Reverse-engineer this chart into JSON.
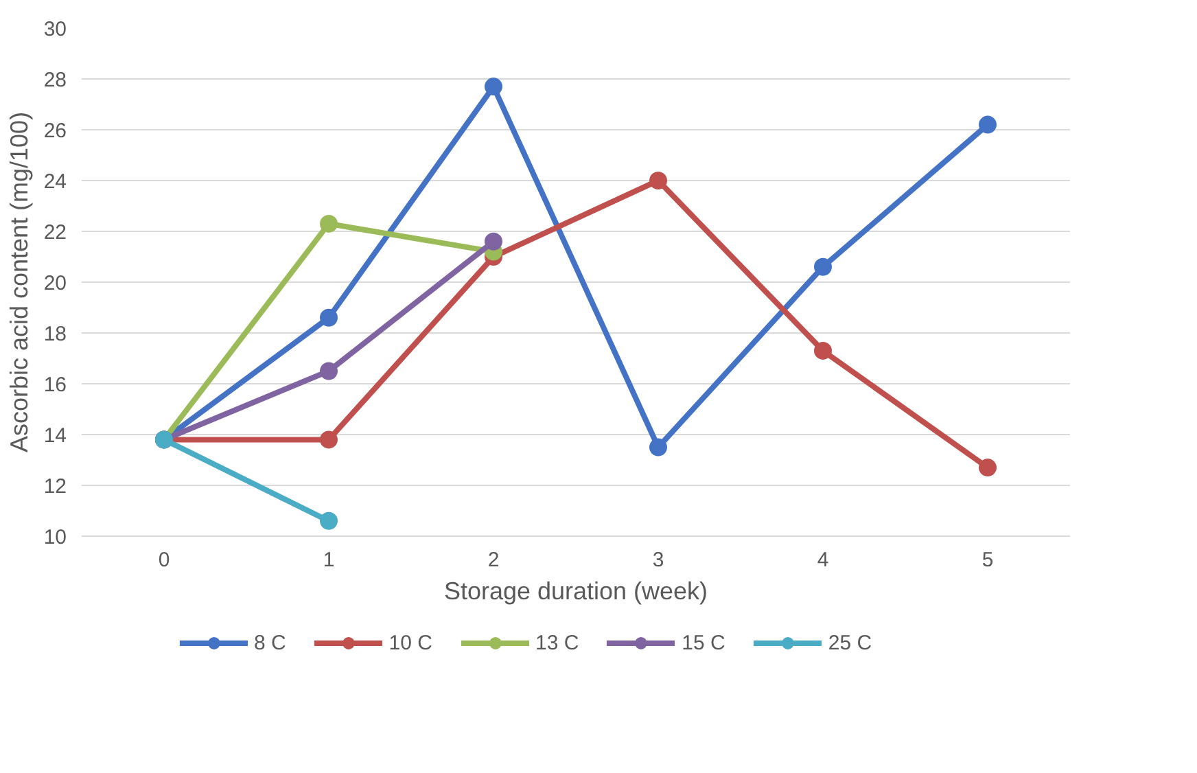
{
  "chart_data": {
    "type": "line",
    "xlabel": "Storage duration (week)",
    "ylabel": "Ascorbic acid content (mg/100)",
    "categories": [
      "0",
      "1",
      "2",
      "3",
      "4",
      "5"
    ],
    "ylim": [
      10,
      30
    ],
    "yticks": [
      10,
      12,
      14,
      16,
      18,
      20,
      22,
      24,
      26,
      28,
      30
    ],
    "grid": "y",
    "legend": "bottom",
    "marker": "circle",
    "line_style": "solid",
    "series": [
      {
        "name": "8 C",
        "color": "#4472c4",
        "values": [
          13.8,
          18.6,
          27.7,
          13.5,
          20.6,
          26.2
        ]
      },
      {
        "name": "10 C",
        "color": "#c0504d",
        "values": [
          13.8,
          13.8,
          21.0,
          24.0,
          17.3,
          12.7
        ]
      },
      {
        "name": "13 C",
        "color": "#9bbb59",
        "values": [
          13.8,
          22.3,
          21.2,
          null,
          null,
          null
        ]
      },
      {
        "name": "15 C",
        "color": "#8064a2",
        "values": [
          13.8,
          16.5,
          21.6,
          null,
          null,
          null
        ]
      },
      {
        "name": "25 C",
        "color": "#4bacc6",
        "values": [
          13.8,
          10.6,
          null,
          null,
          null,
          null
        ]
      }
    ]
  }
}
